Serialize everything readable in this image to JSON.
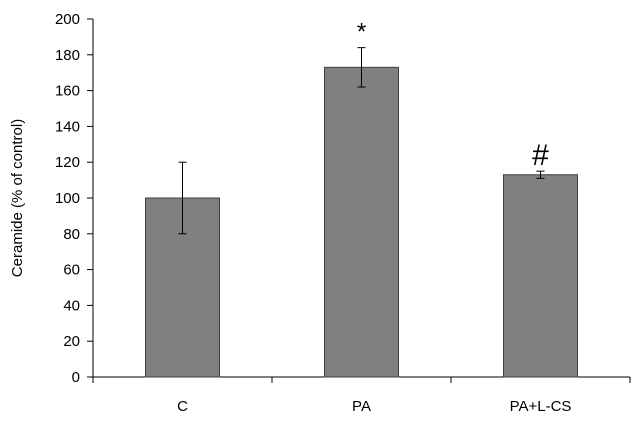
{
  "chart_data": {
    "type": "bar",
    "title": "",
    "xlabel": "",
    "ylabel": "Ceramide (% of control)",
    "categories": [
      "C",
      "PA",
      "PA+L-CS"
    ],
    "values": [
      100,
      173,
      113
    ],
    "error": [
      20,
      11,
      2
    ],
    "annotations": [
      "",
      "*",
      "#"
    ],
    "ylim": [
      0,
      200
    ],
    "yticks": [
      0,
      20,
      40,
      60,
      80,
      100,
      120,
      140,
      160,
      180,
      200
    ],
    "grid": false,
    "legend": "none",
    "colors": {
      "bar_fill": "#808080",
      "bar_stroke": "#404040",
      "axis": "#000000"
    }
  }
}
